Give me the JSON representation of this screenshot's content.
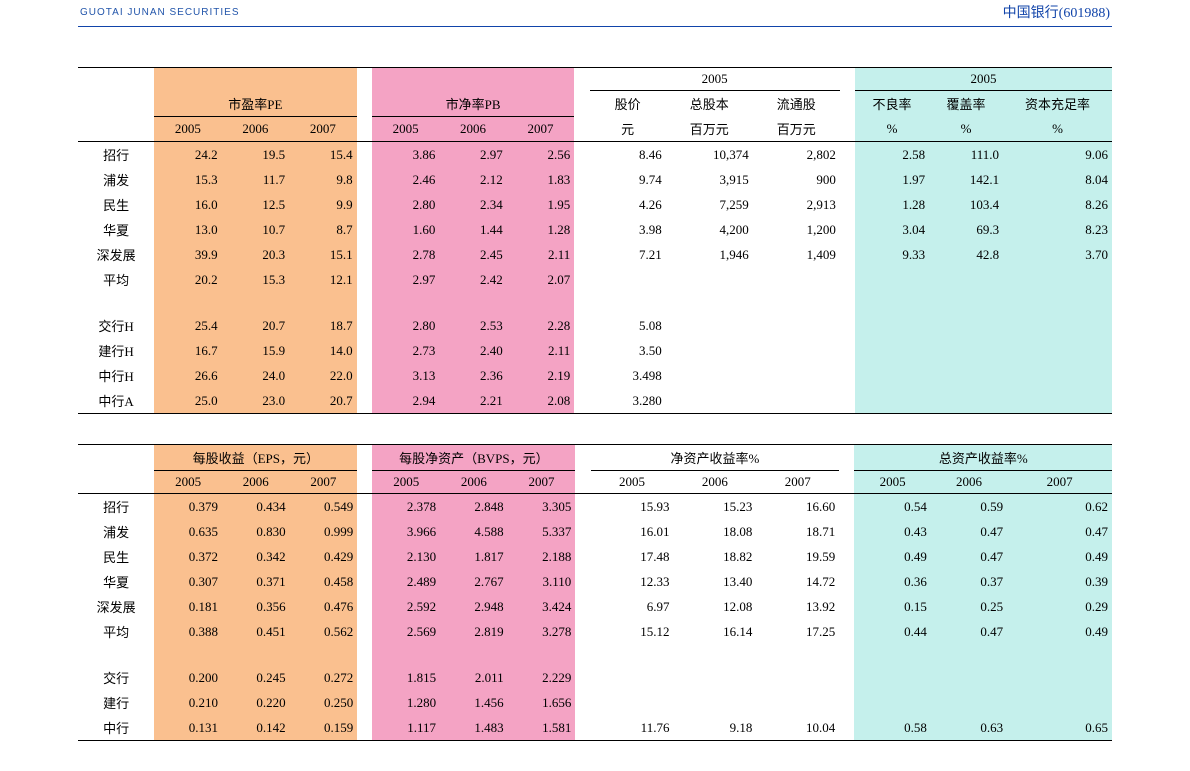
{
  "header": {
    "logo_sub": "GUOTAI JUNAN SECURITIES",
    "company": "中国银行(601988)"
  },
  "colors": {
    "orange": "#fac08f",
    "pink": "#f4a3c4",
    "cyan": "#c5f0ec",
    "rule": "#1144aa"
  },
  "table1": {
    "groups": {
      "pe": {
        "title": "市盈率PE",
        "years": [
          "2005",
          "2006",
          "2007"
        ]
      },
      "pb": {
        "title": "市净率PB",
        "years": [
          "2005",
          "2006",
          "2007"
        ]
      },
      "mid_super": "2005",
      "mid": {
        "c1": "股价",
        "c2": "总股本",
        "c3": "流通股",
        "u1": "元",
        "u2": "百万元",
        "u3": "百万元"
      },
      "right_super": "2005",
      "right": {
        "c1": "不良率",
        "c2": "覆盖率",
        "c3": "资本充足率",
        "u1": "%",
        "u2": "%",
        "u3": "%"
      }
    },
    "rows": [
      {
        "label": "招行",
        "pe": [
          "24.2",
          "19.5",
          "15.4"
        ],
        "pb": [
          "3.86",
          "2.97",
          "2.56"
        ],
        "mid": [
          "8.46",
          "10,374",
          "2,802"
        ],
        "right": [
          "2.58",
          "111.0",
          "9.06"
        ]
      },
      {
        "label": "浦发",
        "pe": [
          "15.3",
          "11.7",
          "9.8"
        ],
        "pb": [
          "2.46",
          "2.12",
          "1.83"
        ],
        "mid": [
          "9.74",
          "3,915",
          "900"
        ],
        "right": [
          "1.97",
          "142.1",
          "8.04"
        ]
      },
      {
        "label": "民生",
        "pe": [
          "16.0",
          "12.5",
          "9.9"
        ],
        "pb": [
          "2.80",
          "2.34",
          "1.95"
        ],
        "mid": [
          "4.26",
          "7,259",
          "2,913"
        ],
        "right": [
          "1.28",
          "103.4",
          "8.26"
        ]
      },
      {
        "label": "华夏",
        "pe": [
          "13.0",
          "10.7",
          "8.7"
        ],
        "pb": [
          "1.60",
          "1.44",
          "1.28"
        ],
        "mid": [
          "3.98",
          "4,200",
          "1,200"
        ],
        "right": [
          "3.04",
          "69.3",
          "8.23"
        ]
      },
      {
        "label": "深发展",
        "pe": [
          "39.9",
          "20.3",
          "15.1"
        ],
        "pb": [
          "2.78",
          "2.45",
          "2.11"
        ],
        "mid": [
          "7.21",
          "1,946",
          "1,409"
        ],
        "right": [
          "9.33",
          "42.8",
          "3.70"
        ]
      },
      {
        "label": "平均",
        "pe": [
          "20.2",
          "15.3",
          "12.1"
        ],
        "pb": [
          "2.97",
          "2.42",
          "2.07"
        ],
        "mid": [
          "",
          "",
          ""
        ],
        "right": [
          "",
          "",
          ""
        ]
      },
      {
        "label": "",
        "pe": [
          "",
          "",
          ""
        ],
        "pb": [
          "",
          "",
          ""
        ],
        "mid": [
          "",
          "",
          ""
        ],
        "right": [
          "",
          "",
          ""
        ]
      },
      {
        "label": "交行H",
        "pe": [
          "25.4",
          "20.7",
          "18.7"
        ],
        "pb": [
          "2.80",
          "2.53",
          "2.28"
        ],
        "mid": [
          "5.08",
          "",
          ""
        ],
        "right": [
          "",
          "",
          ""
        ]
      },
      {
        "label": "建行H",
        "pe": [
          "16.7",
          "15.9",
          "14.0"
        ],
        "pb": [
          "2.73",
          "2.40",
          "2.11"
        ],
        "mid": [
          "3.50",
          "",
          ""
        ],
        "right": [
          "",
          "",
          ""
        ]
      },
      {
        "label": "中行H",
        "pe": [
          "26.6",
          "24.0",
          "22.0"
        ],
        "pb": [
          "3.13",
          "2.36",
          "2.19"
        ],
        "mid": [
          "3.498",
          "",
          ""
        ],
        "right": [
          "",
          "",
          ""
        ]
      },
      {
        "label": "中行A",
        "pe": [
          "25.0",
          "23.0",
          "20.7"
        ],
        "pb": [
          "2.94",
          "2.21",
          "2.08"
        ],
        "mid": [
          "3.280",
          "",
          ""
        ],
        "right": [
          "",
          "",
          ""
        ]
      }
    ]
  },
  "table2": {
    "groups": {
      "eps": {
        "title": "每股收益（EPS，元）",
        "years": [
          "2005",
          "2006",
          "2007"
        ]
      },
      "bvps": {
        "title": "每股净资产（BVPS，元）",
        "years": [
          "2005",
          "2006",
          "2007"
        ]
      },
      "roe": {
        "title": "净资产收益率%",
        "years": [
          "2005",
          "2006",
          "2007"
        ]
      },
      "roa": {
        "title": "总资产收益率%",
        "years": [
          "2005",
          "2006",
          "2007"
        ]
      }
    },
    "rows": [
      {
        "label": "招行",
        "eps": [
          "0.379",
          "0.434",
          "0.549"
        ],
        "bvps": [
          "2.378",
          "2.848",
          "3.305"
        ],
        "roe": [
          "15.93",
          "15.23",
          "16.60"
        ],
        "roa": [
          "0.54",
          "0.59",
          "0.62"
        ]
      },
      {
        "label": "浦发",
        "eps": [
          "0.635",
          "0.830",
          "0.999"
        ],
        "bvps": [
          "3.966",
          "4.588",
          "5.337"
        ],
        "roe": [
          "16.01",
          "18.08",
          "18.71"
        ],
        "roa": [
          "0.43",
          "0.47",
          "0.47"
        ]
      },
      {
        "label": "民生",
        "eps": [
          "0.372",
          "0.342",
          "0.429"
        ],
        "bvps": [
          "2.130",
          "1.817",
          "2.188"
        ],
        "roe": [
          "17.48",
          "18.82",
          "19.59"
        ],
        "roa": [
          "0.49",
          "0.47",
          "0.49"
        ]
      },
      {
        "label": "华夏",
        "eps": [
          "0.307",
          "0.371",
          "0.458"
        ],
        "bvps": [
          "2.489",
          "2.767",
          "3.110"
        ],
        "roe": [
          "12.33",
          "13.40",
          "14.72"
        ],
        "roa": [
          "0.36",
          "0.37",
          "0.39"
        ]
      },
      {
        "label": "深发展",
        "eps": [
          "0.181",
          "0.356",
          "0.476"
        ],
        "bvps": [
          "2.592",
          "2.948",
          "3.424"
        ],
        "roe": [
          "6.97",
          "12.08",
          "13.92"
        ],
        "roa": [
          "0.15",
          "0.25",
          "0.29"
        ]
      },
      {
        "label": "平均",
        "eps": [
          "0.388",
          "0.451",
          "0.562"
        ],
        "bvps": [
          "2.569",
          "2.819",
          "3.278"
        ],
        "roe": [
          "15.12",
          "16.14",
          "17.25"
        ],
        "roa": [
          "0.44",
          "0.47",
          "0.49"
        ]
      },
      {
        "label": "",
        "eps": [
          "",
          "",
          ""
        ],
        "bvps": [
          "",
          "",
          ""
        ],
        "roe": [
          "",
          "",
          ""
        ],
        "roa": [
          "",
          "",
          ""
        ]
      },
      {
        "label": "交行",
        "eps": [
          "0.200",
          "0.245",
          "0.272"
        ],
        "bvps": [
          "1.815",
          "2.011",
          "2.229"
        ],
        "roe": [
          "",
          "",
          ""
        ],
        "roa": [
          "",
          "",
          ""
        ]
      },
      {
        "label": "建行",
        "eps": [
          "0.210",
          "0.220",
          "0.250"
        ],
        "bvps": [
          "1.280",
          "1.456",
          "1.656"
        ],
        "roe": [
          "",
          "",
          ""
        ],
        "roa": [
          "",
          "",
          ""
        ]
      },
      {
        "label": "中行",
        "eps": [
          "0.131",
          "0.142",
          "0.159"
        ],
        "bvps": [
          "1.117",
          "1.483",
          "1.581"
        ],
        "roe": [
          "11.76",
          "9.18",
          "10.04"
        ],
        "roa": [
          "0.58",
          "0.63",
          "0.65"
        ]
      }
    ]
  }
}
